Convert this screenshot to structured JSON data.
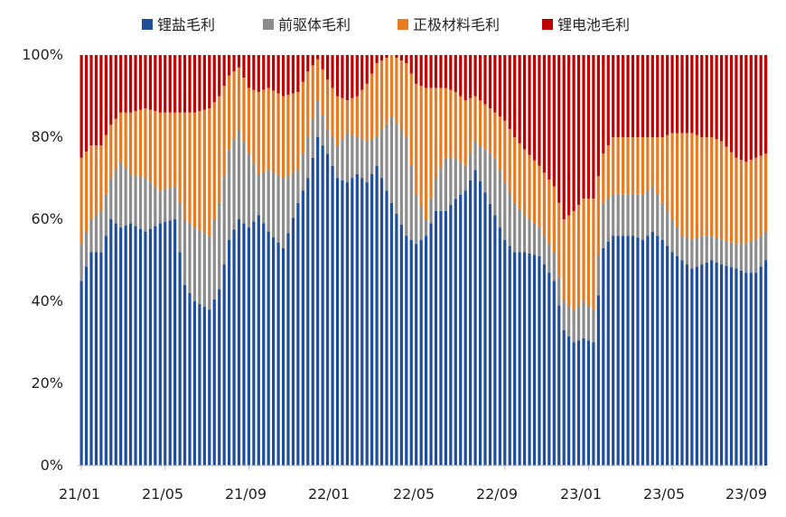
{
  "chart_data": {
    "type": "bar",
    "stacked": true,
    "percent": true,
    "legend_position": "top-center",
    "x_tick_labels": [
      "21/01",
      "21/05",
      "21/09",
      "22/01",
      "22/05",
      "22/09",
      "23/01",
      "23/05",
      "23/09"
    ],
    "x_tick_index": [
      0,
      17,
      34,
      51,
      69,
      86,
      103,
      120,
      137
    ],
    "y_ticks": [
      "0%",
      "20%",
      "40%",
      "60%",
      "80%",
      "100%"
    ],
    "ylim": [
      0,
      100
    ],
    "anchors": {
      "x": [
        0,
        2,
        4,
        6,
        8,
        10,
        13,
        16,
        19,
        21,
        23,
        26,
        28,
        30,
        32,
        34,
        36,
        38,
        41,
        44,
        46,
        48,
        50,
        52,
        54,
        56,
        58,
        60,
        63,
        66,
        68,
        70,
        72,
        74,
        76,
        78,
        80,
        84,
        86,
        88,
        90,
        93,
        96,
        98,
        100,
        102,
        104,
        106,
        108,
        110,
        112,
        114,
        116,
        118,
        120,
        122,
        124,
        126,
        128,
        130,
        133,
        135,
        137,
        139
      ],
      "li_salt": [
        45,
        52,
        52,
        60,
        58,
        59,
        57,
        59,
        60,
        44,
        40,
        38,
        43,
        55,
        60,
        58,
        61,
        57,
        53,
        64,
        70,
        80,
        76,
        70,
        69,
        71,
        69,
        73,
        64,
        56,
        54,
        56,
        62,
        62,
        65,
        67,
        72,
        61,
        55,
        52,
        52,
        51,
        45,
        33,
        30,
        31,
        30,
        53,
        56,
        56,
        56,
        55,
        57,
        55,
        52,
        50,
        48,
        49,
        50,
        49,
        48,
        47,
        47,
        50
      ],
      "precursor": [
        54,
        60,
        62,
        70,
        74,
        71,
        70,
        67,
        68,
        60,
        58,
        56,
        64,
        77,
        82,
        76,
        71,
        72,
        70,
        72,
        80,
        89,
        82,
        78,
        81,
        80,
        79,
        80,
        85,
        80,
        66,
        60,
        70,
        75,
        75,
        73,
        79,
        75,
        69,
        64,
        61,
        58,
        52,
        40,
        38,
        40,
        38,
        64,
        66,
        66,
        66,
        66,
        68,
        64,
        60,
        56,
        55,
        56,
        56,
        55,
        54,
        54,
        55,
        57
      ],
      "cathode": [
        75,
        78,
        78,
        83,
        86,
        86,
        87,
        86,
        86,
        86,
        86,
        87,
        90,
        95,
        97,
        92,
        91,
        92,
        90,
        91,
        96,
        99,
        94,
        90,
        89,
        90,
        93,
        98,
        100,
        98,
        93,
        92,
        92,
        92,
        91,
        89,
        90,
        86,
        84,
        80,
        77,
        73,
        68,
        60,
        62,
        65,
        65,
        76,
        80,
        80,
        80,
        80,
        80,
        80,
        81,
        81,
        81,
        80,
        80,
        79,
        75,
        74,
        75,
        76
      ]
    },
    "series": [
      {
        "key": "li_salt",
        "name": "锂盐毛利",
        "color": "#1F4E9C"
      },
      {
        "key": "precursor",
        "name": "前驱体毛利",
        "color": "#8C8C8C"
      },
      {
        "key": "cathode",
        "name": "正极材料毛利",
        "color": "#E87A1F"
      },
      {
        "key": "battery",
        "name": "锂电池毛利",
        "color": "#C00000"
      }
    ]
  }
}
